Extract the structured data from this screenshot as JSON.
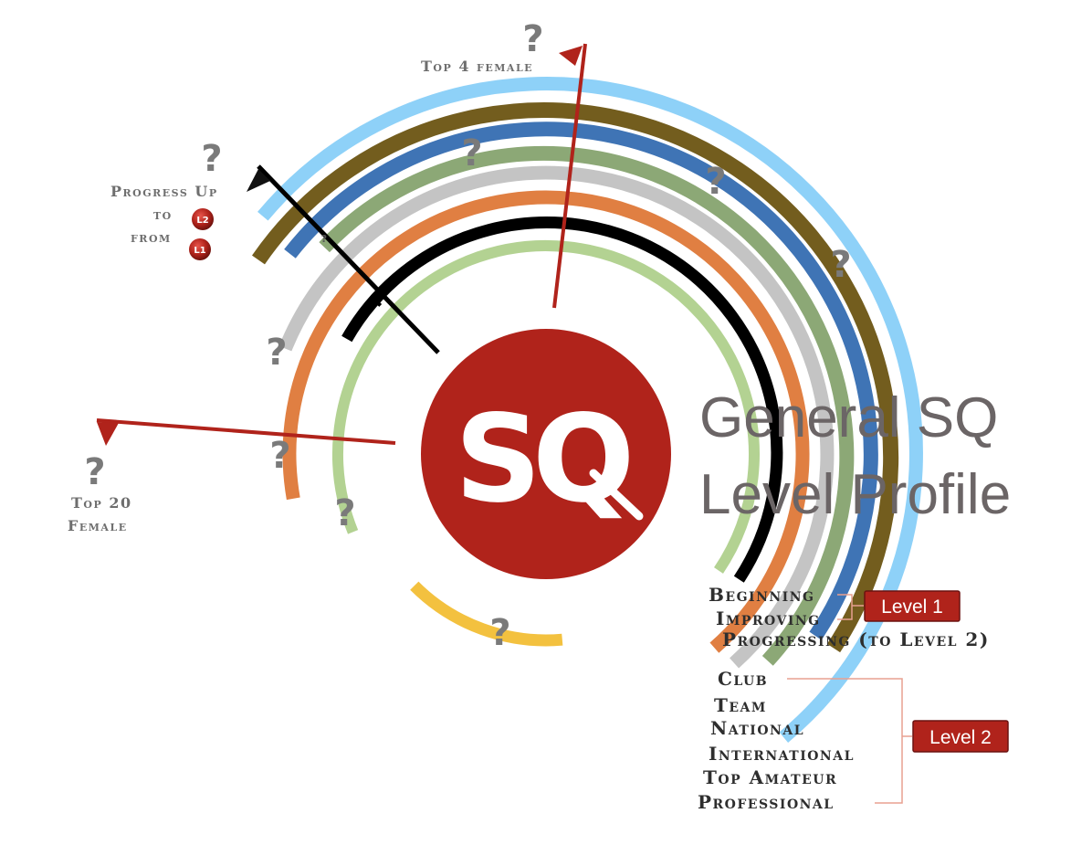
{
  "title": {
    "line1": "General SQ",
    "line2": "Level Profile"
  },
  "logo": {
    "text": "SQ",
    "color": "#B0231B"
  },
  "levels": [
    {
      "key": "beginning",
      "label": "Beginning",
      "color": "#F3C13F"
    },
    {
      "key": "improving",
      "label": "Improving",
      "color": "#B3D292"
    },
    {
      "key": "progressing",
      "label": "Progressing (to Level 2)",
      "color": "#000000"
    },
    {
      "key": "club",
      "label": "Club",
      "color": "#E07F42"
    },
    {
      "key": "team",
      "label": "Team",
      "color": "#C4C4C4"
    },
    {
      "key": "national",
      "label": "National",
      "color": "#8CA876"
    },
    {
      "key": "international",
      "label": "International",
      "color": "#8CA876"
    },
    {
      "key": "top_amateur",
      "label": "Top Amateur",
      "color": "#3F74B5"
    },
    {
      "key": "professional",
      "label": "Professional",
      "color": "#735D1E"
    },
    {
      "key": "outer",
      "label": "",
      "color": "#8ED1F8"
    }
  ],
  "groups": {
    "level1": "Level 1",
    "level2": "Level 2",
    "badge_color": "#B0231B",
    "bracket_color": "#E8A090"
  },
  "markers": {
    "top4": "Top 4 female",
    "top20_line1": "Top 20",
    "top20_line2": "Female",
    "progress_line1": "Progress Up",
    "progress_line2": "to",
    "progress_line3": "from",
    "ball_upper": "L2",
    "ball_lower": "L1",
    "line_color": "#B0231B"
  },
  "unknown_marker": "?"
}
